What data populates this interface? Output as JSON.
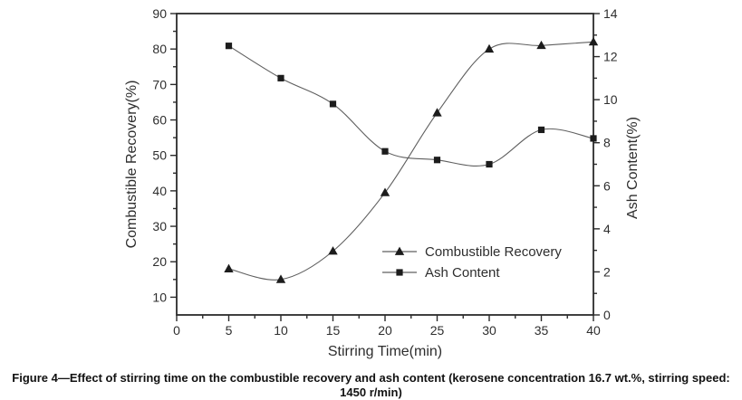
{
  "figure": {
    "caption": "Figure 4—Effect of stirring time on the combustible recovery and ash content (kerosene concentration 16.7 wt.%, stirring speed: 1450 r/min)"
  },
  "chart_data": {
    "type": "line",
    "title": "",
    "xlabel": "Stirring Time(min)",
    "ylabel_left": "Combustible Recovery(%)",
    "ylabel_right": "Ash Content(%)",
    "x": [
      5,
      10,
      15,
      20,
      25,
      30,
      35,
      40
    ],
    "series": [
      {
        "name": "Combustible Recovery",
        "axis": "left",
        "marker": "triangle",
        "values": [
          18,
          15,
          23,
          39.5,
          62,
          80,
          81,
          82
        ]
      },
      {
        "name": "Ash Content",
        "axis": "right",
        "marker": "square",
        "values": [
          12.5,
          11.0,
          9.8,
          7.6,
          7.2,
          7.0,
          8.6,
          8.2
        ]
      }
    ],
    "xlim": [
      0,
      40
    ],
    "ylim_left": [
      5,
      90
    ],
    "ylim_right": [
      0,
      14
    ],
    "x_tick_labels": [
      "0",
      "5",
      "10",
      "15",
      "20",
      "25",
      "30",
      "35",
      "40"
    ],
    "x_ticks": [
      0,
      5,
      10,
      15,
      20,
      25,
      30,
      35,
      40
    ],
    "x_minor_step": 2.5,
    "left_tick_labels": [
      "10",
      "20",
      "30",
      "40",
      "50",
      "60",
      "70",
      "80",
      "90"
    ],
    "left_ticks": [
      10,
      20,
      30,
      40,
      50,
      60,
      70,
      80,
      90
    ],
    "left_minor_step": 5,
    "right_tick_labels": [
      "0",
      "2",
      "4",
      "6",
      "8",
      "10",
      "12",
      "14"
    ],
    "right_ticks": [
      0,
      2,
      4,
      6,
      8,
      10,
      12,
      14
    ],
    "right_minor_step": 1,
    "grid": false,
    "legend": {
      "position": "inside-lower-right",
      "items": [
        "Combustible Recovery",
        "Ash Content"
      ]
    },
    "colors": {
      "frame": "#2b2b2b",
      "line": "#5f5f5f",
      "marker": "#1c1c1c",
      "text": "#2e2e2e"
    }
  }
}
